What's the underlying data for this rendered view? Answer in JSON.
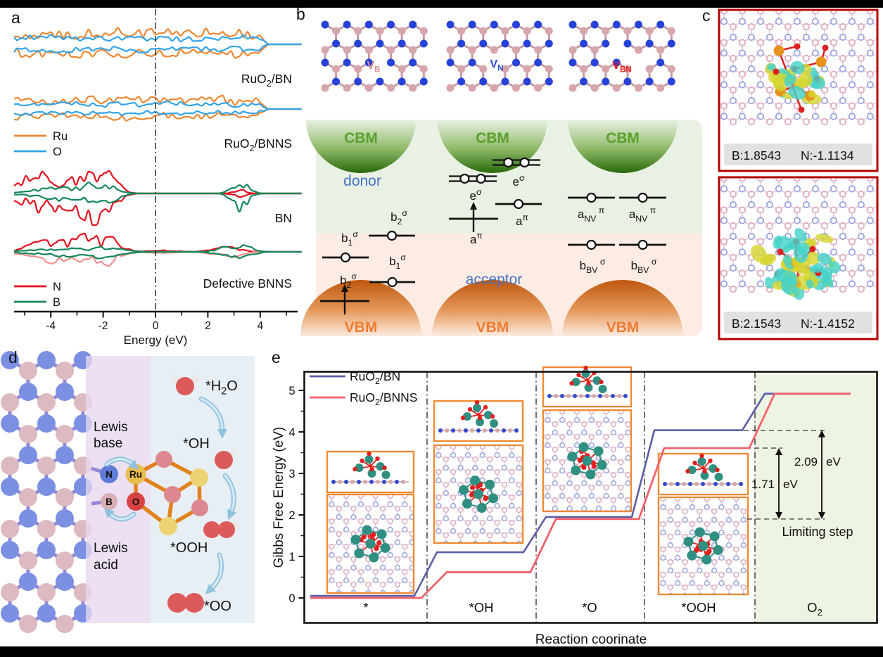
{
  "chart_data": [
    {
      "panel": "a",
      "type": "line",
      "title": "Spin-resolved density of states (qualitative)",
      "xlabel": "Energy (eV)",
      "x_range": [
        -5,
        5
      ],
      "x_ticks": [
        -4,
        -2,
        0,
        2,
        4
      ],
      "fermi_line_x": 0,
      "groups": [
        {
          "label": "RuO2/BN",
          "series": [
            "Ru",
            "O"
          ]
        },
        {
          "label": "RuO2/BNNS",
          "series": [
            "Ru",
            "O"
          ]
        },
        {
          "label": "BN",
          "series": [
            "N",
            "B"
          ]
        },
        {
          "label": "Defective BNNS",
          "series": [
            "N",
            "B"
          ]
        }
      ]
    },
    {
      "panel": "e",
      "type": "line",
      "xlabel": "Reaction coorinate",
      "ylabel": "Gibbs Free Energy (eV)",
      "ylim": [
        0,
        5
      ],
      "categories": [
        "*",
        "*OH",
        "*O",
        "*OOH",
        "O2"
      ],
      "series": [
        {
          "name": "RuO2/BN",
          "color": "#5b5ea6",
          "values": [
            0.05,
            1.1,
            1.95,
            4.04,
            4.92
          ]
        },
        {
          "name": "RuO2/BNNS",
          "color": "#f4606c",
          "values": [
            0.0,
            0.62,
            1.9,
            3.61,
            4.92
          ]
        }
      ],
      "annotations": [
        "1.71 eV",
        "2.09 eV",
        "Limiting step"
      ],
      "legend_position": "top-left",
      "shaded_region": "O2"
    }
  ],
  "panels": {
    "a": {
      "label": "a",
      "xlabel": "Energy (eV)",
      "x_ticks": [
        "-4",
        "-2",
        "0",
        "2",
        "4"
      ],
      "legend_top": [
        {
          "label": "Ru",
          "color": "#ed8733"
        },
        {
          "label": "O",
          "color": "#33a4e8"
        }
      ],
      "legend_bottom": [
        {
          "label": "N",
          "color": "#e31220"
        },
        {
          "label": "B",
          "color": "#15875a"
        }
      ],
      "group_labels": [
        {
          "parts": [
            [
              "RuO",
              "n"
            ],
            [
              "2",
              "sub"
            ],
            [
              "/BN",
              "n"
            ]
          ]
        },
        {
          "parts": [
            [
              "RuO",
              "n"
            ],
            [
              "2",
              "sub"
            ],
            [
              "/BNNS",
              "n"
            ]
          ]
        },
        {
          "parts": [
            [
              "BN",
              "n"
            ]
          ]
        },
        {
          "parts": [
            [
              "Defective BNNS",
              "n"
            ]
          ]
        }
      ]
    },
    "b": {
      "label": "b",
      "vacancies": [
        {
          "parts": [
            [
              "V",
              "n"
            ],
            [
              "B",
              "sub"
            ]
          ],
          "color": "#d89098"
        },
        {
          "parts": [
            [
              "V",
              "n"
            ],
            [
              "N",
              "sub"
            ]
          ],
          "color": "#2a46d8"
        },
        {
          "parts": [
            [
              "V",
              "n"
            ],
            [
              "BN",
              "sub"
            ]
          ],
          "color": "#e02020"
        }
      ],
      "cbm": "CBM",
      "vbm": "VBM",
      "donor": "donor",
      "acceptor": "acceptor",
      "orbitals": {
        "b1s": {
          "parts": [
            [
              "b",
              "n"
            ],
            [
              "1",
              "sub"
            ],
            [
              "σ",
              "sup"
            ]
          ]
        },
        "b2s": {
          "parts": [
            [
              "b",
              "n"
            ],
            [
              "2",
              "sub"
            ],
            [
              "σ",
              "sup"
            ]
          ]
        },
        "es": {
          "parts": [
            [
              "e",
              "n"
            ],
            [
              "σ",
              "sup"
            ]
          ]
        },
        "ap": {
          "parts": [
            [
              "a",
              "n"
            ],
            [
              "π",
              "sup"
            ]
          ]
        },
        "anv": {
          "parts": [
            [
              "a",
              "n"
            ],
            [
              "NV ",
              "sub"
            ],
            [
              "π",
              "sup"
            ]
          ]
        },
        "bbv": {
          "parts": [
            [
              "b",
              "n"
            ],
            [
              "BV ",
              "sub"
            ],
            [
              "σ",
              "sup"
            ]
          ]
        }
      },
      "colors": {
        "cbm_text": "#5aa02c",
        "vbm_text": "#ed7d31",
        "donor_acceptor": "#4472c4"
      }
    },
    "c": {
      "label": "c",
      "boxes": [
        {
          "b_value": "B:1.8543",
          "n_value": "N:-1.1134"
        },
        {
          "b_value": "B:2.1543",
          "n_value": "N:-1.4152"
        }
      ],
      "border_color": "#b40000"
    },
    "d": {
      "label": "d",
      "lewis_base": [
        "Lewis",
        "base"
      ],
      "lewis_acid": [
        "Lewis",
        "acid"
      ],
      "atoms": [
        {
          "label": "N"
        },
        {
          "label": "Ru"
        },
        {
          "label": "B"
        },
        {
          "label": "O"
        }
      ],
      "species": [
        {
          "parts": [
            [
              "*H",
              "n"
            ],
            [
              "2",
              "sub"
            ],
            [
              "O",
              "n"
            ]
          ]
        },
        {
          "parts": [
            [
              "*OH",
              "n"
            ]
          ]
        },
        {
          "parts": [
            [
              "*OOH",
              "n"
            ]
          ]
        },
        {
          "parts": [
            [
              "*OO",
              "n"
            ]
          ]
        }
      ]
    },
    "e": {
      "label": "e",
      "ylabel": "Gibbs Free Energy (eV)",
      "xlabel": "Reaction coorinate",
      "y_ticks": [
        "0",
        "1",
        "2",
        "3",
        "4",
        "5"
      ],
      "legend": [
        {
          "parts": [
            [
              "RuO",
              "n"
            ],
            [
              "2",
              "sub"
            ],
            [
              "/BN",
              "n"
            ]
          ],
          "color": "#5b5ea6"
        },
        {
          "parts": [
            [
              "RuO",
              "n"
            ],
            [
              "2",
              "sub"
            ],
            [
              "/BNNS",
              "n"
            ]
          ],
          "color": "#f4606c"
        }
      ],
      "categories": [
        {
          "parts": [
            [
              "*",
              "n"
            ]
          ]
        },
        {
          "parts": [
            [
              "*OH",
              "n"
            ]
          ]
        },
        {
          "parts": [
            [
              "*O",
              "n"
            ]
          ]
        },
        {
          "parts": [
            [
              "*OOH",
              "n"
            ]
          ]
        },
        {
          "parts": [
            [
              "O",
              "n"
            ],
            [
              "2",
              "sub"
            ]
          ]
        }
      ],
      "series": [
        {
          "name": "RuO2/BN",
          "color": "#5b5ea6",
          "values": [
            0.05,
            1.1,
            1.95,
            4.04,
            4.92
          ]
        },
        {
          "name": "RuO2/BNNS",
          "color": "#f4606c",
          "values": [
            0.0,
            0.62,
            1.9,
            3.61,
            4.92
          ]
        }
      ],
      "annotations": {
        "arrow_small": "1.71 eV",
        "arrow_big": "2.09 eV",
        "limiting": "Limiting step"
      }
    }
  }
}
